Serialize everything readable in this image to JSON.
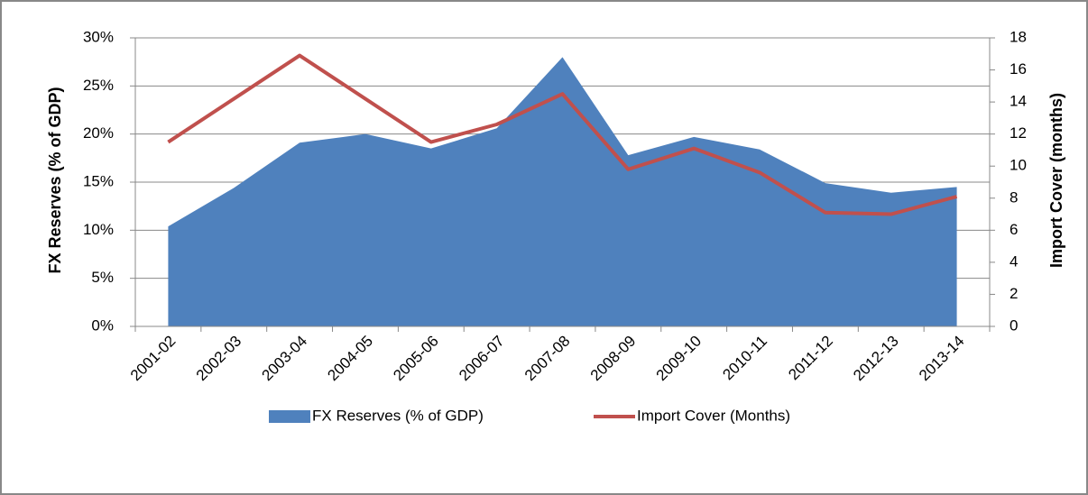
{
  "chart_data": {
    "type": "combo",
    "categories": [
      "2001-02",
      "2002-03",
      "2003-04",
      "2004-05",
      "2005-06",
      "2006-07",
      "2007-08",
      "2008-09",
      "2009-10",
      "2010-11",
      "2011-12",
      "2012-13",
      "2013-14"
    ],
    "series": [
      {
        "name": "FX Reserves (% of GDP)",
        "type": "area",
        "color": "#4f81bd",
        "axis": "y",
        "values": [
          10.4,
          14.4,
          19.1,
          20.0,
          18.5,
          20.6,
          28.0,
          17.8,
          19.7,
          18.4,
          14.9,
          13.9,
          14.5
        ]
      },
      {
        "name": "Import Cover (Months)",
        "type": "line",
        "color": "#c0504d",
        "axis": "y2",
        "values": [
          11.5,
          14.2,
          16.9,
          14.2,
          11.5,
          12.6,
          14.5,
          9.8,
          11.1,
          9.6,
          7.1,
          7.0,
          8.1
        ]
      }
    ],
    "ylabel": "FX Reserves (% of GDP)",
    "y2label": "Import Cover (months)",
    "ylim": [
      0,
      30
    ],
    "yticks": [
      {
        "value": 0,
        "label": "0%"
      },
      {
        "value": 5,
        "label": "5%"
      },
      {
        "value": 10,
        "label": "10%"
      },
      {
        "value": 15,
        "label": "15%"
      },
      {
        "value": 20,
        "label": "20%"
      },
      {
        "value": 25,
        "label": "25%"
      },
      {
        "value": 30,
        "label": "30%"
      }
    ],
    "y2lim": [
      0,
      18
    ],
    "y2ticks": [
      0,
      2,
      4,
      6,
      8,
      10,
      12,
      14,
      16,
      18
    ],
    "grid": true,
    "legend": "bottom"
  }
}
